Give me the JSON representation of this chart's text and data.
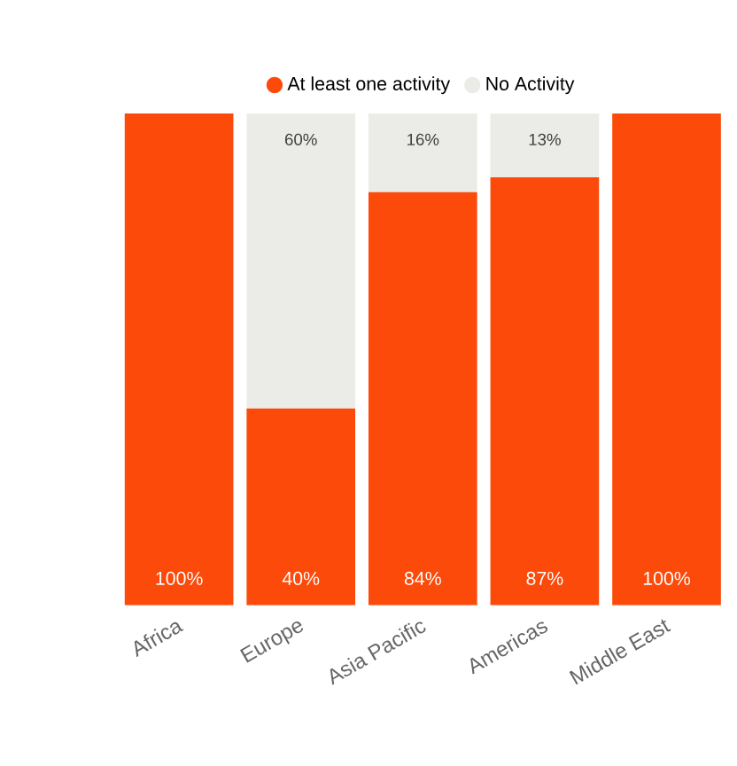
{
  "chart_data": {
    "type": "bar",
    "stacked": true,
    "legend": "top",
    "categories": [
      "Africa",
      "Europe",
      "Asia Pacific",
      "Americas",
      "Middle East"
    ],
    "series": [
      {
        "name": "At least one activity",
        "color": "#fc4a0a",
        "values": [
          100,
          40,
          84,
          87,
          100
        ],
        "value_labels": [
          "100%",
          "40%",
          "84%",
          "87%",
          "100%"
        ]
      },
      {
        "name": "No Activity",
        "color": "#ebebe7",
        "values": [
          0,
          60,
          16,
          13,
          0
        ],
        "value_labels": [
          null,
          "60%",
          "16%",
          "13%",
          null
        ]
      }
    ]
  }
}
